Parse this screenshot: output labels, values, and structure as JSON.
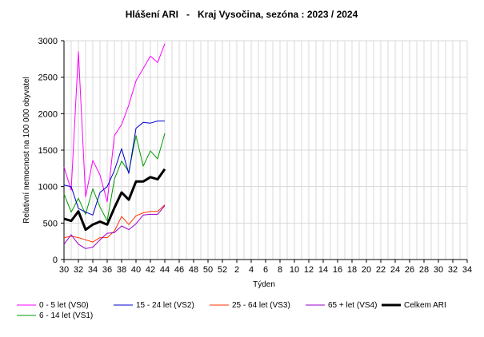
{
  "chart_data": {
    "type": "line",
    "title": "Hlášení ARI   -   Kraj Vysočina, sezóna : 2023 / 2024",
    "xlabel": "Týden",
    "ylabel": "Relativní nemocnost na 100 000 obyvatel",
    "ylim": [
      0,
      3000
    ],
    "yticks": [
      "0",
      "500",
      "1000",
      "1500",
      "2000",
      "2500",
      "3000"
    ],
    "x_ticks": [
      "30",
      "32",
      "34",
      "36",
      "38",
      "40",
      "42",
      "44",
      "46",
      "48",
      "50",
      "52",
      "2",
      "4",
      "6",
      "8",
      "10",
      "12",
      "14",
      "16",
      "18",
      "20",
      "22",
      "24",
      "26",
      "28",
      "30",
      "32",
      "34"
    ],
    "x_data_weeks": [
      "30",
      "31",
      "32",
      "33",
      "34",
      "35",
      "36",
      "37",
      "38",
      "39",
      "40",
      "41",
      "42",
      "43",
      "44"
    ],
    "grid": true,
    "legend_position": "bottom",
    "series": [
      {
        "name": "0 - 5 let (VS0)",
        "color": "#ff00ff",
        "width": 1,
        "values": [
          1270,
          950,
          2850,
          860,
          1360,
          1160,
          790,
          1700,
          1850,
          2120,
          2450,
          2620,
          2790,
          2700,
          2960
        ]
      },
      {
        "name": "15 - 24 let (VS2)",
        "color": "#0000cc",
        "width": 1,
        "values": [
          1020,
          1000,
          700,
          650,
          610,
          920,
          1000,
          1220,
          1520,
          1180,
          1800,
          1880,
          1870,
          1900,
          1900
        ]
      },
      {
        "name": "25 - 64 let (VS3)",
        "color": "#ff3300",
        "width": 1,
        "values": [
          300,
          320,
          300,
          270,
          240,
          300,
          300,
          390,
          590,
          480,
          600,
          640,
          660,
          660,
          750
        ]
      },
      {
        "name": "65 + let (VS4)",
        "color": "#9900cc",
        "width": 1,
        "values": [
          210,
          340,
          210,
          150,
          170,
          270,
          360,
          370,
          460,
          410,
          490,
          610,
          620,
          620,
          740
        ]
      },
      {
        "name": "Celkem ARI",
        "color": "#000000",
        "width": 3,
        "values": [
          560,
          530,
          660,
          410,
          480,
          520,
          480,
          710,
          920,
          820,
          1070,
          1070,
          1130,
          1100,
          1240
        ]
      },
      {
        "name": "6 - 14 let (VS1)",
        "color": "#009900",
        "width": 1,
        "values": [
          900,
          650,
          840,
          620,
          970,
          720,
          530,
          1100,
          1350,
          1200,
          1700,
          1280,
          1490,
          1380,
          1730
        ]
      }
    ]
  }
}
